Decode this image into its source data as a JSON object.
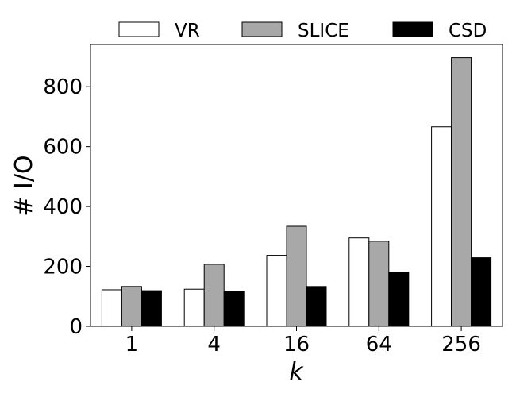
{
  "chart_data": {
    "type": "bar",
    "categories": [
      "1",
      "4",
      "16",
      "64",
      "256"
    ],
    "series": [
      {
        "name": "VR",
        "color": "#ffffff",
        "values": [
          122,
          124,
          237,
          295,
          666
        ]
      },
      {
        "name": "SLICE",
        "color": "#a8a8a8",
        "values": [
          133,
          207,
          334,
          284,
          897
        ]
      },
      {
        "name": "CSD",
        "color": "#000000",
        "values": [
          119,
          117,
          133,
          181,
          229
        ]
      }
    ],
    "xlabel": "k",
    "ylabel": "# I/O",
    "ylim": [
      0,
      941
    ],
    "yticks": [
      0,
      200,
      400,
      600,
      800
    ],
    "grid": false,
    "legend_position": "top"
  }
}
